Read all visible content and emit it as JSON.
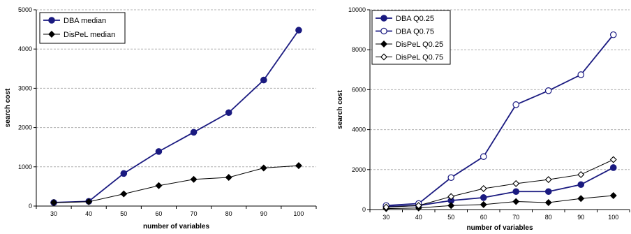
{
  "chart_data": [
    {
      "type": "line",
      "x": [
        30,
        40,
        50,
        60,
        70,
        80,
        90,
        100
      ],
      "xlabel": "number of variables",
      "ylabel": "search cost",
      "ylim": [
        0,
        5000
      ],
      "yticks": [
        0,
        1000,
        2000,
        3000,
        4000,
        5000
      ],
      "grid": "horizontal",
      "legend_position": "top-left",
      "series": [
        {
          "name": "DBA median",
          "values": [
            90,
            120,
            830,
            1390,
            1880,
            2380,
            3210,
            4480
          ],
          "color": "#1a1a80",
          "marker": "filled-circle"
        },
        {
          "name": "DisPeL median",
          "values": [
            90,
            110,
            310,
            520,
            680,
            730,
            970,
            1030
          ],
          "color": "#000000",
          "marker": "filled-diamond"
        }
      ]
    },
    {
      "type": "line",
      "x": [
        30,
        40,
        50,
        60,
        70,
        80,
        90,
        100
      ],
      "xlabel": "number of variables",
      "ylabel": "search cost",
      "ylim": [
        0,
        10000
      ],
      "yticks": [
        0,
        2000,
        4000,
        6000,
        8000,
        10000
      ],
      "grid": "horizontal",
      "legend_position": "top-left",
      "series": [
        {
          "name": "DBA Q0.25",
          "values": [
            150,
            200,
            450,
            600,
            900,
            900,
            1250,
            2100
          ],
          "color": "#1a1a80",
          "marker": "filled-circle"
        },
        {
          "name": "DBA Q0.75",
          "values": [
            200,
            300,
            1600,
            2650,
            5250,
            5950,
            6750,
            8750
          ],
          "color": "#1a1a80",
          "marker": "open-circle"
        },
        {
          "name": "DisPeL Q0.25",
          "values": [
            50,
            80,
            200,
            250,
            400,
            350,
            550,
            700
          ],
          "color": "#000000",
          "marker": "filled-diamond"
        },
        {
          "name": "DisPeL Q0.75",
          "values": [
            120,
            200,
            650,
            1050,
            1300,
            1500,
            1750,
            2500
          ],
          "color": "#000000",
          "marker": "open-diamond"
        }
      ]
    }
  ]
}
